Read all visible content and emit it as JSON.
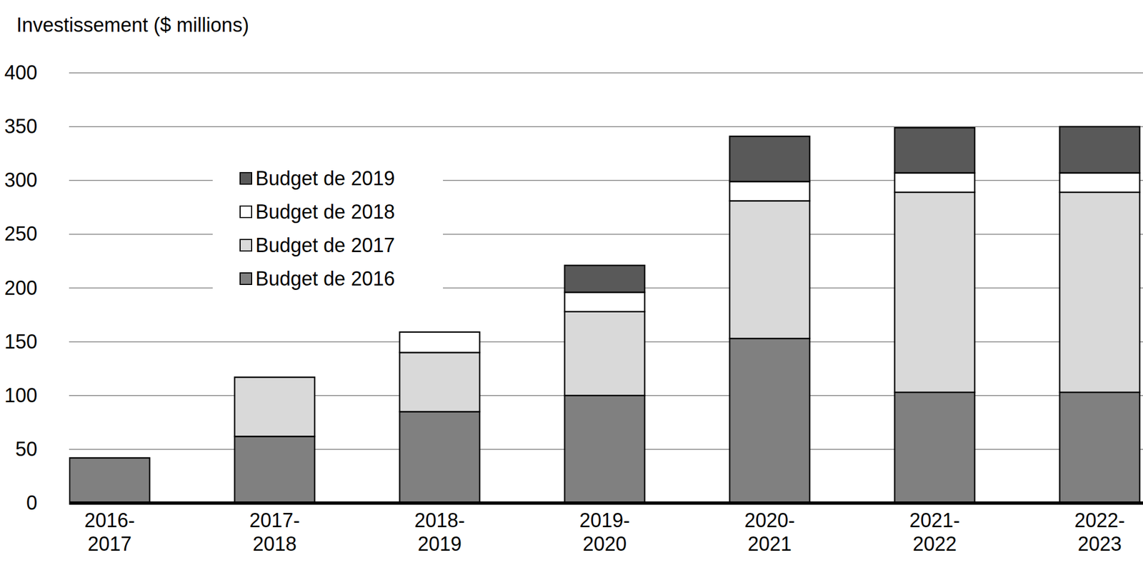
{
  "chart_data": {
    "type": "bar",
    "stacked": true,
    "grid": true,
    "legend": "upper left",
    "y_label": "Investissement ($ millions)",
    "categories": [
      "2016-2017",
      "2017-2018",
      "2018-2019",
      "2019-2020",
      "2020-2021",
      "2021-2022",
      "2022-2023"
    ],
    "series": [
      {
        "name": "Budget de 2016",
        "color": "#808080",
        "values": [
          42,
          62,
          85,
          100,
          153,
          103,
          103
        ]
      },
      {
        "name": "Budget de 2017",
        "color": "#d9d9d9",
        "values": [
          null,
          55,
          55,
          78,
          128,
          186,
          186
        ]
      },
      {
        "name": "Budget de 2018",
        "color": "#ffffff",
        "values": [
          null,
          null,
          19,
          18,
          18,
          18,
          18
        ]
      },
      {
        "name": "Budget de 2019",
        "color": "#595959",
        "values": [
          null,
          null,
          null,
          25,
          42,
          42,
          43
        ]
      }
    ],
    "ylim": [
      0,
      400
    ],
    "yticks": [
      0,
      50,
      100,
      150,
      200,
      250,
      300,
      350,
      400
    ]
  }
}
